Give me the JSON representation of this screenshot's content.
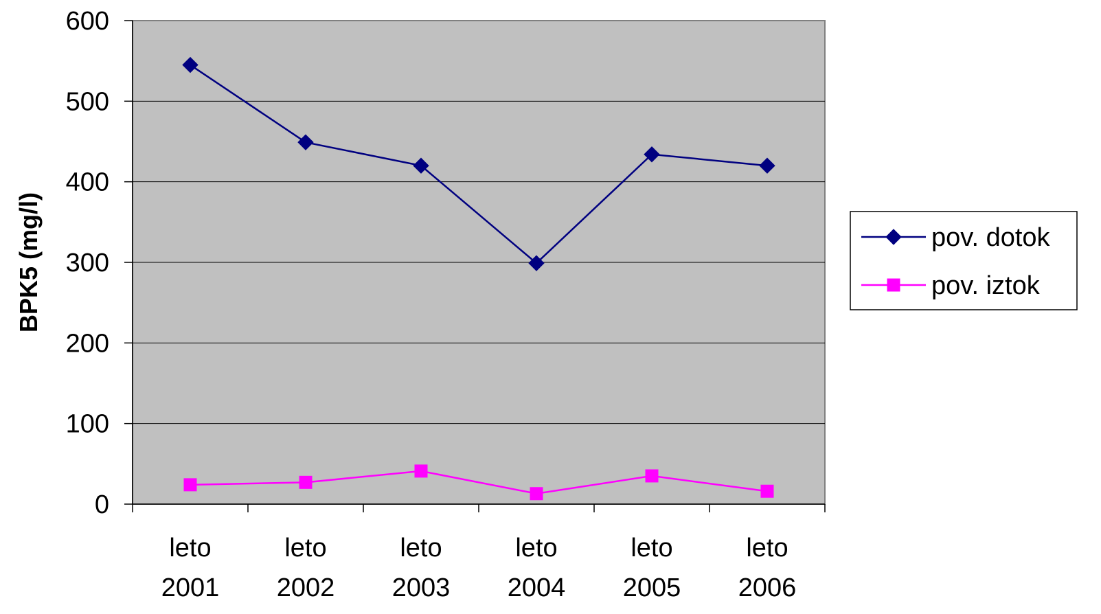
{
  "chart_data": {
    "type": "line",
    "title": "",
    "xlabel": "",
    "ylabel": "BPK5 (mg/l)",
    "categories": [
      [
        "leto",
        "2001"
      ],
      [
        "leto",
        "2002"
      ],
      [
        "leto",
        "2003"
      ],
      [
        "leto",
        "2004"
      ],
      [
        "leto",
        "2005"
      ],
      [
        "leto",
        "2006"
      ]
    ],
    "ylim": [
      0,
      600
    ],
    "yticks": [
      0,
      100,
      200,
      300,
      400,
      500,
      600
    ],
    "grid": "horizontal",
    "legend": "right",
    "plot_background": "#c0c0c0",
    "series": [
      {
        "name": "pov. dotok",
        "values": [
          545,
          449,
          420,
          299,
          434,
          420
        ],
        "color": "#000080",
        "marker": "diamond"
      },
      {
        "name": "pov. iztok",
        "values": [
          24,
          27,
          41,
          13,
          35,
          16
        ],
        "color": "#ff00ff",
        "marker": "square"
      }
    ]
  }
}
